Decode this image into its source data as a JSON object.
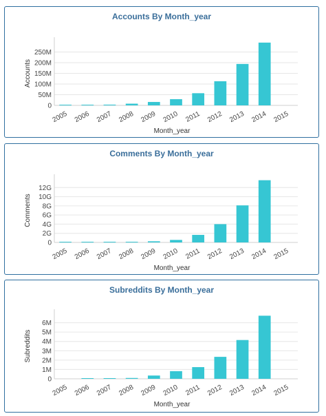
{
  "colors": {
    "bar": "#36c6d3",
    "panel_border": "#2f6f9f",
    "title": "#3a6e9a",
    "grid": "#e6e6e6"
  },
  "chart_data": [
    {
      "type": "bar",
      "title": "Accounts By Month_year",
      "xlabel": "Month_year",
      "ylabel": "Accounts",
      "categories": [
        "2005",
        "2006",
        "2007",
        "2008",
        "2009",
        "2010",
        "2011",
        "2012",
        "2013",
        "2014",
        "2015"
      ],
      "values": [
        0.5,
        1.5,
        3.5,
        8,
        16,
        29,
        57,
        113,
        194,
        294,
        0
      ],
      "value_unit": "M",
      "ylim": [
        0,
        300
      ],
      "yticks": [
        0,
        50,
        100,
        150,
        200,
        250
      ],
      "ytick_labels": [
        "0",
        "50M",
        "100M",
        "150M",
        "200M",
        "250M"
      ],
      "grid": true,
      "legend": "none"
    },
    {
      "type": "bar",
      "title": "Comments By Month_year",
      "xlabel": "Month_year",
      "ylabel": "Comments",
      "categories": [
        "2005",
        "2006",
        "2007",
        "2008",
        "2009",
        "2010",
        "2011",
        "2012",
        "2013",
        "2014",
        "2015"
      ],
      "values": [
        0.01,
        0.03,
        0.05,
        0.12,
        0.25,
        0.55,
        1.65,
        4.0,
        8.1,
        13.6,
        0
      ],
      "value_unit": "G",
      "ylim": [
        0,
        14
      ],
      "yticks": [
        0,
        2,
        4,
        6,
        8,
        10,
        12
      ],
      "ytick_labels": [
        "0",
        "2G",
        "4G",
        "6G",
        "8G",
        "10G",
        "12G"
      ],
      "grid": true,
      "legend": "none"
    },
    {
      "type": "bar",
      "title": "Subreddits By Month_year",
      "xlabel": "Month_year",
      "ylabel": "Subreddits",
      "categories": [
        "2005",
        "2006",
        "2007",
        "2008",
        "2009",
        "2010",
        "2011",
        "2012",
        "2013",
        "2014",
        "2015"
      ],
      "values": [
        0.0,
        0.02,
        0.04,
        0.09,
        0.35,
        0.82,
        1.25,
        2.35,
        4.15,
        6.75,
        0
      ],
      "value_unit": "M",
      "ylim": [
        0,
        7
      ],
      "yticks": [
        0,
        1,
        2,
        3,
        4,
        5,
        6
      ],
      "ytick_labels": [
        "0",
        "1M",
        "2M",
        "3M",
        "4M",
        "5M",
        "6M"
      ],
      "grid": true,
      "legend": "none"
    }
  ]
}
